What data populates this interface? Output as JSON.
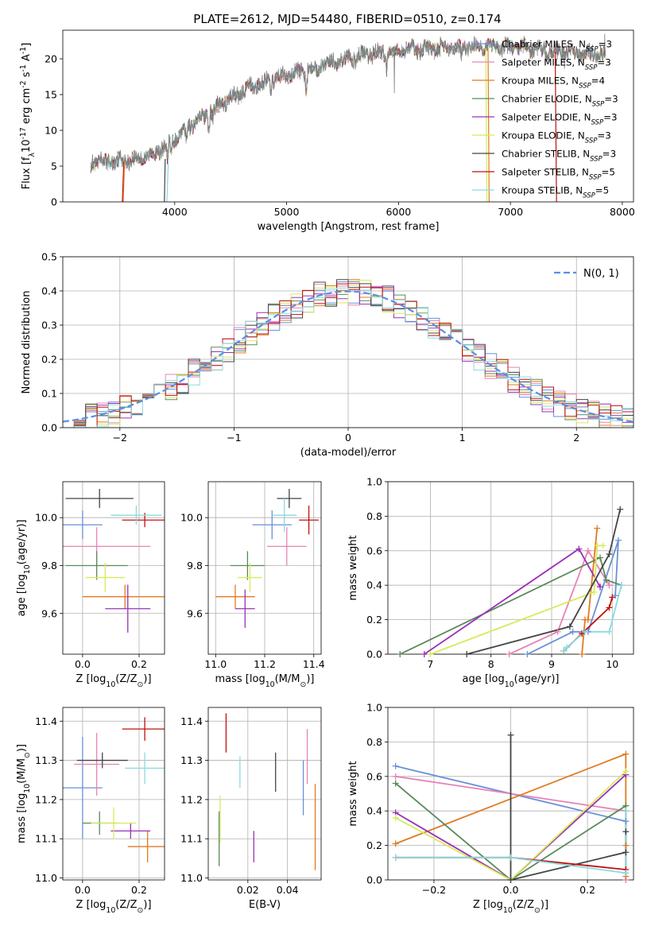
{
  "figure_title": "PLATE=2612, MJD=54480, FIBERID=0510, z=0.174",
  "chart_data": [
    {
      "id": "spectrum",
      "type": "line",
      "xlabel": "wavelength [Angstrom, rest frame]",
      "ylabel": "Flux [f$_\\lambda$10$^{-17}$ erg cm$^{-2}$ s$^{-1}$ A$^{-1}$]",
      "xlim": [
        3000,
        8100
      ],
      "ylim": [
        0,
        24
      ],
      "xticks": [
        4000,
        5000,
        6000,
        7000,
        8000
      ],
      "yticks": [
        0,
        5,
        10,
        15,
        20
      ],
      "legend_position": "top-right",
      "legend": [
        {
          "name": "Chabrier MILES",
          "n": "3",
          "color": "#6a8fd8"
        },
        {
          "name": "Salpeter MILES",
          "n": "3",
          "color": "#e883b5"
        },
        {
          "name": "Kroupa MILES",
          "n": "4",
          "color": "#e07b20"
        },
        {
          "name": "Chabrier ELODIE",
          "n": "3",
          "color": "#5a8a5a"
        },
        {
          "name": "Salpeter ELODIE",
          "n": "3",
          "color": "#9b30b8"
        },
        {
          "name": "Kroupa ELODIE",
          "n": "3",
          "color": "#d8ea5a"
        },
        {
          "name": "Chabrier STELIB",
          "n": "3",
          "color": "#444444"
        },
        {
          "name": "Salpeter STELIB",
          "n": "5",
          "color": "#c01010"
        },
        {
          "name": "Kroupa STELIB",
          "n": "5",
          "color": "#8adbe0"
        }
      ],
      "observed_color": "#808080",
      "continuum_x": [
        3250,
        3400,
        3600,
        3800,
        3950,
        4100,
        4300,
        4500,
        4700,
        4900,
        5100,
        5300,
        5500,
        5700,
        5900,
        6100,
        6300,
        6500,
        6700,
        6900,
        7100,
        7300,
        7500,
        7700,
        7850
      ],
      "continuum_y": [
        5.4,
        5.6,
        5.9,
        6.5,
        8.3,
        10.2,
        12.4,
        14.5,
        16.2,
        17.2,
        18.1,
        19.2,
        19.8,
        20.5,
        21.0,
        21.4,
        21.4,
        21.6,
        21.8,
        21.6,
        21.6,
        21.1,
        20.9,
        20.6,
        20.5
      ],
      "absorption_lines": [
        {
          "x": 3934,
          "depth": 2.2
        },
        {
          "x": 3968,
          "depth": 2.0
        },
        {
          "x": 4102,
          "depth": 1.2
        },
        {
          "x": 4304,
          "depth": 2.4
        },
        {
          "x": 4340,
          "depth": 1.0
        },
        {
          "x": 4861,
          "depth": 1.0
        },
        {
          "x": 5175,
          "depth": 2.6
        },
        {
          "x": 5270,
          "depth": 1.0
        },
        {
          "x": 5893,
          "depth": 2.2
        },
        {
          "x": 6563,
          "depth": 1.2
        }
      ],
      "spikes": [
        {
          "x": 5960,
          "y": 15.2
        },
        {
          "x": 7480,
          "y": 18.6
        },
        {
          "x": 7840,
          "y": 23.5
        }
      ],
      "model_dropouts": [
        {
          "color": "#c01010",
          "x": [
            3532,
            3545
          ],
          "y": [
            0,
            5.6
          ]
        },
        {
          "color": "#c01010",
          "x": [
            7400,
            7412
          ],
          "y": [
            21,
            0
          ]
        },
        {
          "color": "#e07b20",
          "x": [
            3540,
            3552
          ],
          "y": [
            0,
            5.7
          ]
        },
        {
          "color": "#e07b20",
          "x": [
            6800,
            6810
          ],
          "y": [
            21.5,
            0
          ]
        },
        {
          "color": "#8adbe0",
          "x": [
            3930,
            3945
          ],
          "y": [
            0,
            6.3
          ]
        },
        {
          "color": "#444444",
          "x": [
            3908,
            3915
          ],
          "y": [
            0,
            6.0
          ]
        },
        {
          "color": "#d8ea5a",
          "x": [
            6780,
            6790
          ],
          "y": [
            21.5,
            0
          ]
        }
      ]
    },
    {
      "id": "residuals",
      "type": "line",
      "xlabel": "(data-model)/error",
      "ylabel": "Normed distribution",
      "xlim": [
        -2.5,
        2.5
      ],
      "ylim": [
        0,
        0.5
      ],
      "xticks": [
        -2,
        -1,
        0,
        1,
        2
      ],
      "yticks": [
        0.0,
        0.1,
        0.2,
        0.3,
        0.4,
        0.5
      ],
      "grid": true,
      "legend_position": "top-right",
      "reference_label": "$\\mathcal{N}(0,1)$",
      "reference_color": "#5b8ee6",
      "histogram": {
        "type": "histogram",
        "bin_start": -2.5,
        "bin_width": 0.1,
        "n_bins": 50,
        "noise_amplitude": 0.04
      }
    },
    {
      "id": "age-vs-z",
      "type": "scatter",
      "xlabel": "Z [log$_{10}$($Z/Z_\\odot$)]",
      "ylabel": "age  [log$_{10}$($age/yr$)]",
      "xlim": [
        -0.07,
        0.29
      ],
      "ylim": [
        9.43,
        10.15
      ],
      "xticks": [
        0.0,
        0.2
      ],
      "yticks": [
        9.6,
        9.8,
        10.0
      ],
      "grid": true,
      "errorbars": [
        {
          "color": "#6a8fd8",
          "x": 0.0,
          "y": 9.97,
          "xerr": 0.07,
          "yerr": 0.06
        },
        {
          "color": "#e883b5",
          "x": 0.05,
          "y": 9.88,
          "xerr": 0.19,
          "yerr": 0.08
        },
        {
          "color": "#e07b20",
          "x": 0.15,
          "y": 9.67,
          "xerr": 0.15,
          "yerr": 0.05
        },
        {
          "color": "#5a8a5a",
          "x": 0.05,
          "y": 9.8,
          "xerr": 0.11,
          "yerr": 0.06
        },
        {
          "color": "#9b30b8",
          "x": 0.16,
          "y": 9.62,
          "xerr": 0.08,
          "yerr": 0.1
        },
        {
          "color": "#d8ea5a",
          "x": 0.08,
          "y": 9.75,
          "xerr": 0.07,
          "yerr": 0.06
        },
        {
          "color": "#444444",
          "x": 0.06,
          "y": 10.08,
          "xerr": 0.12,
          "yerr": 0.04
        },
        {
          "color": "#c01010",
          "x": 0.22,
          "y": 9.99,
          "xerr": 0.08,
          "yerr": 0.03
        },
        {
          "color": "#8adbe0",
          "x": 0.19,
          "y": 10.01,
          "xerr": 0.09,
          "yerr": 0.04
        }
      ]
    },
    {
      "id": "age-vs-mass",
      "type": "scatter",
      "xlabel": "mass [log$_{10}$($M/M_\\odot$)]",
      "ylabel": "",
      "xlim": [
        10.97,
        11.43
      ],
      "ylim": [
        9.43,
        10.15
      ],
      "xticks": [
        11.0,
        11.2,
        11.4
      ],
      "yticks": [
        9.6,
        9.8,
        10.0
      ],
      "grid": true,
      "errorbars": [
        {
          "color": "#6a8fd8",
          "x": 11.23,
          "y": 9.97,
          "xerr": 0.08,
          "yerr": 0.06
        },
        {
          "color": "#e883b5",
          "x": 11.29,
          "y": 9.88,
          "xerr": 0.08,
          "yerr": 0.08
        },
        {
          "color": "#e07b20",
          "x": 11.08,
          "y": 9.67,
          "xerr": 0.08,
          "yerr": 0.05
        },
        {
          "color": "#5a8a5a",
          "x": 11.13,
          "y": 9.8,
          "xerr": 0.07,
          "yerr": 0.06
        },
        {
          "color": "#9b30b8",
          "x": 11.12,
          "y": 9.62,
          "xerr": 0.04,
          "yerr": 0.08
        },
        {
          "color": "#d8ea5a",
          "x": 11.14,
          "y": 9.75,
          "xerr": 0.05,
          "yerr": 0.06
        },
        {
          "color": "#444444",
          "x": 11.3,
          "y": 10.08,
          "xerr": 0.05,
          "yerr": 0.04
        },
        {
          "color": "#c01010",
          "x": 11.38,
          "y": 9.99,
          "xerr": 0.04,
          "yerr": 0.06
        },
        {
          "color": "#8adbe0",
          "x": 11.28,
          "y": 10.01,
          "xerr": 0.05,
          "yerr": 0.07
        }
      ]
    },
    {
      "id": "weight-vs-age",
      "type": "line",
      "xlabel": "age  [log$_{10}$($age/yr$)]",
      "ylabel": "mass weight",
      "xlim": [
        6.3,
        10.35
      ],
      "ylim": [
        0,
        1
      ],
      "xticks": [
        7,
        8,
        9,
        10
      ],
      "yticks": [
        0.0,
        0.2,
        0.4,
        0.6,
        0.8,
        1.0
      ],
      "grid": true,
      "series": [
        {
          "color": "#6a8fd8",
          "x": [
            8.6,
            9.35,
            9.6,
            10.1,
            10.05
          ],
          "y": [
            0.0,
            0.13,
            0.13,
            0.66,
            0.34
          ]
        },
        {
          "color": "#e883b5",
          "x": [
            8.3,
            9.1,
            9.6,
            9.95,
            9.95
          ],
          "y": [
            0.0,
            0.13,
            0.6,
            0.4,
            0.4
          ]
        },
        {
          "color": "#e07b20",
          "x": [
            9.5,
            9.55,
            9.6,
            9.75
          ],
          "y": [
            0.0,
            0.2,
            0.2,
            0.73
          ]
        },
        {
          "color": "#5a8a5a",
          "x": [
            6.5,
            9.8,
            9.9,
            10.15
          ],
          "y": [
            0.0,
            0.56,
            0.43,
            0.4
          ]
        },
        {
          "color": "#9b30b8",
          "x": [
            6.9,
            9.45,
            9.8,
            9.8
          ],
          "y": [
            0.0,
            0.61,
            0.39,
            0.39
          ]
        },
        {
          "color": "#d8ea5a",
          "x": [
            7.0,
            9.7,
            9.75,
            9.85
          ],
          "y": [
            0.0,
            0.36,
            0.63,
            0.63
          ]
        },
        {
          "color": "#444444",
          "x": [
            7.6,
            9.3,
            9.95,
            10.13
          ],
          "y": [
            0.0,
            0.16,
            0.58,
            0.84
          ]
        },
        {
          "color": "#c01010",
          "x": [
            9.2,
            9.5,
            9.95,
            10.0
          ],
          "y": [
            0.02,
            0.12,
            0.27,
            0.33
          ]
        },
        {
          "color": "#8adbe0",
          "x": [
            9.2,
            9.25,
            9.55,
            9.95,
            10.15
          ],
          "y": [
            0.02,
            0.04,
            0.13,
            0.13,
            0.4
          ]
        }
      ]
    },
    {
      "id": "mass-vs-z",
      "type": "scatter",
      "xlabel": "Z [log$_{10}$($Z/Z_\\odot$)]",
      "ylabel": "mass [log$_{10}$($M/M_\\odot$)]",
      "xlim": [
        -0.07,
        0.29
      ],
      "ylim": [
        10.995,
        11.435
      ],
      "xticks": [
        0.0,
        0.2
      ],
      "yticks": [
        11.0,
        11.1,
        11.2,
        11.3,
        11.4
      ],
      "grid": true,
      "errorbars": [
        {
          "color": "#6a8fd8",
          "x": 0.0,
          "y": 11.23,
          "xerr": 0.07,
          "yerr": 0.13
        },
        {
          "color": "#e883b5",
          "x": 0.05,
          "y": 11.29,
          "xerr": 0.08,
          "yerr": 0.08
        },
        {
          "color": "#e07b20",
          "x": 0.23,
          "y": 11.08,
          "xerr": 0.07,
          "yerr": 0.04
        },
        {
          "color": "#5a8a5a",
          "x": 0.06,
          "y": 11.14,
          "xerr": 0.06,
          "yerr": 0.03
        },
        {
          "color": "#9b30b8",
          "x": 0.17,
          "y": 11.12,
          "xerr": 0.07,
          "yerr": 0.02
        },
        {
          "color": "#d8ea5a",
          "x": 0.11,
          "y": 11.14,
          "xerr": 0.08,
          "yerr": 0.04
        },
        {
          "color": "#444444",
          "x": 0.07,
          "y": 11.3,
          "xerr": 0.09,
          "yerr": 0.02
        },
        {
          "color": "#c01010",
          "x": 0.22,
          "y": 11.38,
          "xerr": 0.08,
          "yerr": 0.03
        },
        {
          "color": "#8adbe0",
          "x": 0.22,
          "y": 11.28,
          "xerr": 0.07,
          "yerr": 0.04
        }
      ]
    },
    {
      "id": "mass-vs-ebv",
      "type": "scatter",
      "xlabel": "E(B-V)",
      "ylabel": "",
      "xlim": [
        0.0,
        0.057
      ],
      "ylim": [
        10.995,
        11.435
      ],
      "xticks": [
        0.02,
        0.04
      ],
      "yticks": [
        11.0,
        11.1,
        11.2,
        11.3,
        11.4
      ],
      "grid": true,
      "errorbars": [
        {
          "color": "#6a8fd8",
          "x": 0.048,
          "y": 11.23,
          "xerr": 0.0,
          "yerr": 0.07
        },
        {
          "color": "#e883b5",
          "x": 0.05,
          "y": 11.31,
          "xerr": 0.0,
          "yerr": 0.07
        },
        {
          "color": "#e07b20",
          "x": 0.054,
          "y": 11.13,
          "xerr": 0.0,
          "yerr": 0.11
        },
        {
          "color": "#5a8a5a",
          "x": 0.0055,
          "y": 11.1,
          "xerr": 0.0,
          "yerr": 0.07
        },
        {
          "color": "#9b30b8",
          "x": 0.023,
          "y": 11.08,
          "xerr": 0.0,
          "yerr": 0.04
        },
        {
          "color": "#d8ea5a",
          "x": 0.006,
          "y": 11.15,
          "xerr": 0.0,
          "yerr": 0.06
        },
        {
          "color": "#444444",
          "x": 0.034,
          "y": 11.27,
          "xerr": 0.0,
          "yerr": 0.05
        },
        {
          "color": "#c01010",
          "x": 0.009,
          "y": 11.37,
          "xerr": 0.0,
          "yerr": 0.05
        },
        {
          "color": "#8adbe0",
          "x": 0.016,
          "y": 11.27,
          "xerr": 0.0,
          "yerr": 0.04
        }
      ]
    },
    {
      "id": "weight-vs-z",
      "type": "line",
      "xlabel": "Z [log$_{10}$($Z/Z_\\odot$)]",
      "ylabel": "mass weight",
      "xlim": [
        -0.32,
        0.32
      ],
      "ylim": [
        0,
        1
      ],
      "xticks": [
        -0.2,
        0.0,
        0.2
      ],
      "yticks": [
        0.0,
        0.2,
        0.4,
        0.6,
        0.8,
        1.0
      ],
      "grid": true,
      "series": [
        {
          "color": "#6a8fd8",
          "x": [
            -0.3,
            0.3,
            0.3
          ],
          "y": [
            0.66,
            0.34,
            0.0
          ]
        },
        {
          "color": "#e883b5",
          "x": [
            -0.3,
            0.3,
            0.3
          ],
          "y": [
            0.6,
            0.4,
            0.0
          ]
        },
        {
          "color": "#e07b20",
          "x": [
            -0.3,
            0.3,
            0.3,
            0.3
          ],
          "y": [
            0.21,
            0.73,
            0.2,
            0.02
          ]
        },
        {
          "color": "#5a8a5a",
          "x": [
            -0.3,
            0.0,
            0.3
          ],
          "y": [
            0.56,
            0.0,
            0.43
          ]
        },
        {
          "color": "#9b30b8",
          "x": [
            -0.3,
            0.0,
            0.3
          ],
          "y": [
            0.39,
            0.0,
            0.61
          ]
        },
        {
          "color": "#d8ea5a",
          "x": [
            -0.3,
            0.0,
            0.3
          ],
          "y": [
            0.36,
            0.0,
            0.63
          ]
        },
        {
          "color": "#444444",
          "x": [
            0.0,
            0.0,
            0.3,
            0.3
          ],
          "y": [
            0.84,
            0.0,
            0.16,
            0.28
          ]
        },
        {
          "color": "#c01010",
          "x": [
            -0.3,
            0.0,
            0.3
          ],
          "y": [
            0.13,
            0.13,
            0.06
          ]
        },
        {
          "color": "#8adbe0",
          "x": [
            -0.3,
            0.0,
            0.3,
            0.3
          ],
          "y": [
            0.13,
            0.13,
            0.04,
            0.4
          ]
        }
      ]
    }
  ]
}
